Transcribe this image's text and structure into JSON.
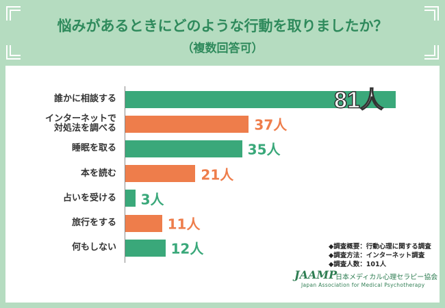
{
  "chart_data": {
    "type": "bar",
    "orientation": "horizontal",
    "title": "悩みがあるときにどのような行動を取りましたか？",
    "subtitle": "（複数回答可）",
    "categories": [
      "誰かに相談する",
      "インターネットで\n対処法を調べる",
      "睡眠を取る",
      "本を読む",
      "占いを受ける",
      "旅行をする",
      "何もしない"
    ],
    "values": [
      81,
      37,
      35,
      21,
      3,
      11,
      12
    ],
    "value_labels": [
      "81人",
      "37人",
      "35人",
      "21人",
      "3人",
      "11人",
      "12人"
    ],
    "colors": [
      "#3aa87a",
      "#ee7d4b",
      "#3aa87a",
      "#ee7d4b",
      "#3aa87a",
      "#ee7d4b",
      "#3aa87a"
    ]
  },
  "notes": [
    "◆調査概要：行動心理に関する調査",
    "◆調査方法：インターネット調査",
    "◆調査人数：101人"
  ],
  "logo": {
    "mark": "JAAMP",
    "name": "日本メディカル心理セラピー協会",
    "english": "Japan Association for Medical Psychotherapy"
  }
}
